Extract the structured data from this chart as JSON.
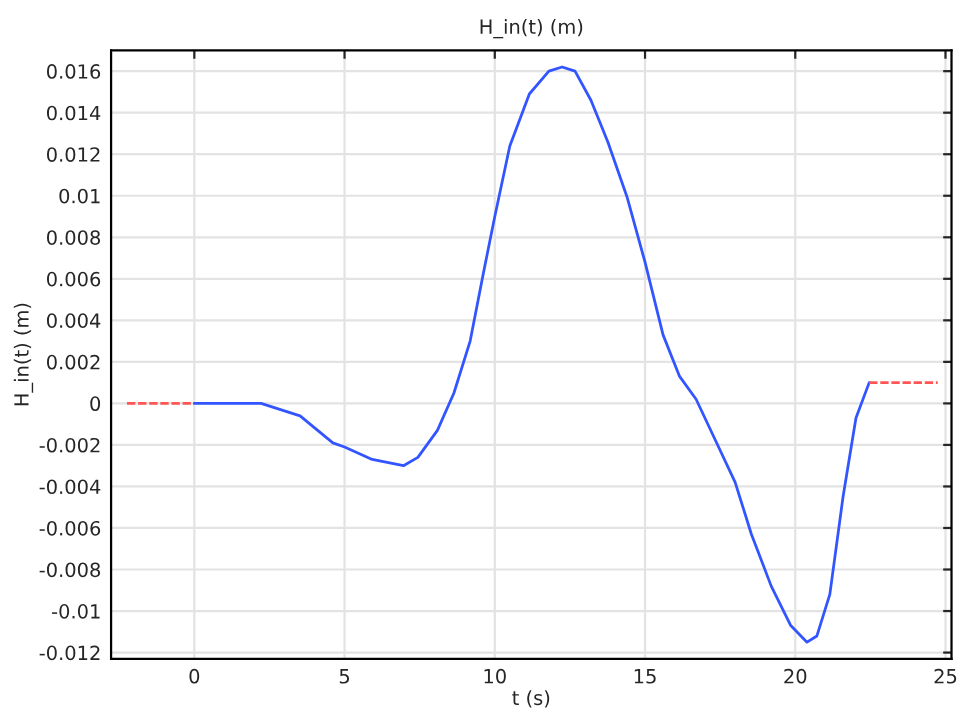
{
  "chart_data": {
    "type": "line",
    "title": "H_in(t) (m)",
    "xlabel": "t (s)",
    "ylabel": "H_in(t) (m)",
    "xlim": [
      -2.77,
      25.2
    ],
    "ylim": [
      -0.0123,
      0.017
    ],
    "xticks": [
      0,
      5,
      10,
      15,
      20,
      25
    ],
    "yticks": [
      -0.012,
      -0.01,
      -0.008,
      -0.006,
      -0.004,
      -0.002,
      0,
      0.002,
      0.004,
      0.006,
      0.008,
      0.01,
      0.012,
      0.014,
      0.016
    ],
    "grid": true,
    "series": [
      {
        "color": "#ff5555",
        "line_style": "dashed",
        "x": [
          -2.24,
          0
        ],
        "values": [
          0,
          0
        ]
      },
      {
        "color": "#3355ff",
        "line_style": "solid",
        "x": [
          0,
          2.22,
          3.52,
          4.61,
          5.0,
          5.92,
          6.96,
          7.44,
          8.09,
          8.64,
          9.18,
          9.61,
          10.0,
          10.5,
          11.15,
          11.8,
          12.24,
          12.67,
          13.2,
          13.76,
          14.41,
          15.0,
          15.6,
          16.15,
          16.7,
          17.35,
          18.0,
          18.54,
          19.2,
          19.85,
          20.39,
          20.72,
          21.15,
          21.59,
          22.02,
          22.46
        ],
        "values": [
          0,
          0,
          -0.0006,
          -0.0019,
          -0.0021,
          -0.0027,
          -0.003,
          -0.0026,
          -0.0013,
          0.0005,
          0.003,
          0.0062,
          0.009,
          0.0124,
          0.0149,
          0.016,
          0.0162,
          0.016,
          0.0146,
          0.0126,
          0.0099,
          0.0068,
          0.0033,
          0.0013,
          0.0002,
          -0.0018,
          -0.0038,
          -0.0063,
          -0.0088,
          -0.0107,
          -0.0115,
          -0.0112,
          -0.0092,
          -0.0045,
          -0.0007,
          0.001
        ]
      },
      {
        "color": "#ff5555",
        "line_style": "dashed",
        "x": [
          22.46,
          24.74
        ],
        "values": [
          0.001,
          0.001
        ]
      }
    ]
  }
}
